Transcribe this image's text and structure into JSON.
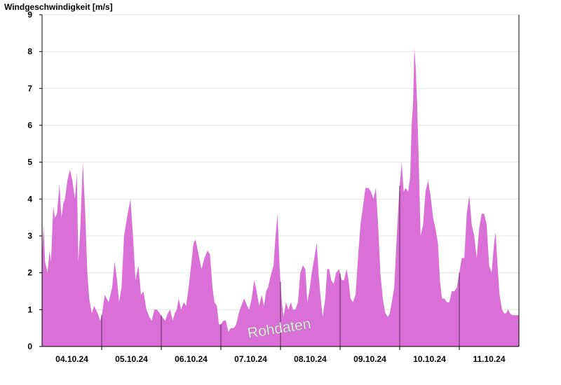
{
  "chart_data": {
    "type": "area",
    "title": "Windgeschwindigkeit [m/s]",
    "watermark": "Rohdaten",
    "ylim": [
      0,
      9
    ],
    "yticks": [
      0,
      1,
      2,
      3,
      4,
      5,
      6,
      7,
      8,
      9
    ],
    "xlim": [
      0,
      192
    ],
    "xticks": [
      {
        "label": "04.10.24",
        "pos": 12
      },
      {
        "label": "05.10.24",
        "pos": 36
      },
      {
        "label": "06.10.24",
        "pos": 60
      },
      {
        "label": "07.10.24",
        "pos": 84
      },
      {
        "label": "08.10.24",
        "pos": 108
      },
      {
        "label": "09.10.24",
        "pos": 132
      },
      {
        "label": "10.10.24",
        "pos": 156
      },
      {
        "label": "11.10.24",
        "pos": 180
      }
    ],
    "day_boundaries": [
      24,
      48,
      72,
      96,
      120,
      144,
      168
    ],
    "grid": true,
    "fill_color": "#da70d6",
    "series": [
      {
        "points": [
          [
            0,
            2.4
          ],
          [
            0.6,
            3.3
          ],
          [
            1.2,
            2.3
          ],
          [
            2.2,
            2.0
          ],
          [
            3,
            2.6
          ],
          [
            3.6,
            2.3
          ],
          [
            4.5,
            3.8
          ],
          [
            5.2,
            3.5
          ],
          [
            6,
            3.6
          ],
          [
            7,
            4.4
          ],
          [
            7.8,
            3.5
          ],
          [
            8.6,
            3.9
          ],
          [
            9.2,
            4.0
          ],
          [
            10.2,
            4.5
          ],
          [
            11.2,
            4.8
          ],
          [
            12.2,
            4.5
          ],
          [
            13.2,
            4.0
          ],
          [
            14,
            4.7
          ],
          [
            14.6,
            2.3
          ],
          [
            15.4,
            3.2
          ],
          [
            16.4,
            5.0
          ],
          [
            17.4,
            3.6
          ],
          [
            18.2,
            2.0
          ],
          [
            19,
            1.3
          ],
          [
            20,
            0.9
          ],
          [
            21,
            1.1
          ],
          [
            22.4,
            0.9
          ],
          [
            23.4,
            0.7
          ],
          [
            24.2,
            0.9
          ],
          [
            25.2,
            1.4
          ],
          [
            26.8,
            1.2
          ],
          [
            28.2,
            1.6
          ],
          [
            29.2,
            2.3
          ],
          [
            30.2,
            1.8
          ],
          [
            31,
            1.2
          ],
          [
            32,
            1.6
          ],
          [
            33,
            3.0
          ],
          [
            34.2,
            3.5
          ],
          [
            35.6,
            4.0
          ],
          [
            36.8,
            2.8
          ],
          [
            37.6,
            1.8
          ],
          [
            38.8,
            2.2
          ],
          [
            39.8,
            1.4
          ],
          [
            40.8,
            1.5
          ],
          [
            42,
            1.0
          ],
          [
            43.2,
            0.8
          ],
          [
            44.2,
            0.7
          ],
          [
            45.2,
            1.0
          ],
          [
            46.2,
            1.0
          ],
          [
            47.4,
            0.9
          ],
          [
            48.4,
            0.8
          ],
          [
            49.6,
            0.7
          ],
          [
            50.6,
            0.9
          ],
          [
            51.6,
            1.0
          ],
          [
            52.6,
            0.7
          ],
          [
            53.4,
            0.9
          ],
          [
            54.2,
            1.0
          ],
          [
            55,
            1.3
          ],
          [
            56,
            1.0
          ],
          [
            57,
            1.2
          ],
          [
            58,
            1.1
          ],
          [
            59,
            1.6
          ],
          [
            60,
            2.2
          ],
          [
            61,
            2.8
          ],
          [
            61.8,
            2.9
          ],
          [
            63,
            2.5
          ],
          [
            64.2,
            2.1
          ],
          [
            65.4,
            2.4
          ],
          [
            66.6,
            2.6
          ],
          [
            67.6,
            2.5
          ],
          [
            68.6,
            1.6
          ],
          [
            69.4,
            1.2
          ],
          [
            70.4,
            1.1
          ],
          [
            71.2,
            0.6
          ],
          [
            72,
            0.6
          ],
          [
            73,
            0.7
          ],
          [
            74,
            0.7
          ],
          [
            75,
            0.4
          ],
          [
            76,
            0.5
          ],
          [
            77.2,
            0.5
          ],
          [
            78.2,
            0.6
          ],
          [
            79.2,
            0.9
          ],
          [
            80.2,
            1.1
          ],
          [
            81.4,
            1.3
          ],
          [
            82.6,
            1.1
          ],
          [
            83.4,
            1.0
          ],
          [
            84.4,
            1.3
          ],
          [
            85.4,
            1.8
          ],
          [
            86.4,
            1.5
          ],
          [
            87.4,
            1.1
          ],
          [
            88.4,
            1.4
          ],
          [
            89.4,
            1.1
          ],
          [
            90.2,
            1.5
          ],
          [
            91,
            1.6
          ],
          [
            92,
            1.9
          ],
          [
            93.2,
            2.2
          ],
          [
            94,
            3.0
          ],
          [
            94.8,
            3.6
          ],
          [
            95.6,
            2.2
          ],
          [
            96.4,
            1.3
          ],
          [
            97.2,
            0.8
          ],
          [
            98.2,
            1.2
          ],
          [
            99.2,
            1.0
          ],
          [
            100.2,
            1.2
          ],
          [
            101,
            1.0
          ],
          [
            102,
            1.0
          ],
          [
            103,
            1.2
          ],
          [
            104,
            2.0
          ],
          [
            105,
            2.2
          ],
          [
            106,
            2.1
          ],
          [
            106.8,
            1.2
          ],
          [
            107.6,
            1.5
          ],
          [
            108.6,
            2.0
          ],
          [
            109.6,
            2.4
          ],
          [
            110.6,
            2.8
          ],
          [
            111.4,
            1.9
          ],
          [
            112.2,
            1.3
          ],
          [
            113,
            0.8
          ],
          [
            114,
            1.3
          ],
          [
            114.8,
            2.1
          ],
          [
            115.6,
            2.1
          ],
          [
            116.4,
            1.8
          ],
          [
            117.4,
            1.7
          ],
          [
            118.4,
            2.0
          ],
          [
            119.6,
            2.1
          ],
          [
            120.6,
            1.8
          ],
          [
            121.6,
            1.8
          ],
          [
            122.6,
            2.1
          ],
          [
            123.4,
            1.8
          ],
          [
            124.2,
            1.3
          ],
          [
            125.2,
            1.2
          ],
          [
            126.2,
            1.4
          ],
          [
            127.2,
            2.4
          ],
          [
            128.2,
            3.3
          ],
          [
            129.2,
            3.8
          ],
          [
            130.2,
            4.3
          ],
          [
            131.4,
            4.3
          ],
          [
            132.4,
            4.2
          ],
          [
            133.4,
            4.0
          ],
          [
            134.4,
            4.3
          ],
          [
            135.4,
            3.2
          ],
          [
            136.2,
            2.0
          ],
          [
            137.2,
            1.3
          ],
          [
            138.2,
            0.9
          ],
          [
            139.2,
            0.8
          ],
          [
            140,
            0.9
          ],
          [
            140.8,
            1.2
          ],
          [
            141.8,
            1.6
          ],
          [
            142.8,
            3.0
          ],
          [
            143.8,
            4.2
          ],
          [
            144.8,
            5.0
          ],
          [
            145.6,
            4.2
          ],
          [
            146.4,
            4.3
          ],
          [
            147.4,
            4.2
          ],
          [
            148.2,
            4.6
          ],
          [
            148.8,
            6.0
          ],
          [
            149.4,
            6.6
          ],
          [
            149.9,
            8.1
          ],
          [
            150.4,
            7.6
          ],
          [
            151,
            6.6
          ],
          [
            151.6,
            5.2
          ],
          [
            152.4,
            3.0
          ],
          [
            153.4,
            3.3
          ],
          [
            154.4,
            4.2
          ],
          [
            155.4,
            4.5
          ],
          [
            156.4,
            4.1
          ],
          [
            157.4,
            3.5
          ],
          [
            158.4,
            3.2
          ],
          [
            159.4,
            2.8
          ],
          [
            160.2,
            1.8
          ],
          [
            161,
            1.3
          ],
          [
            162,
            1.3
          ],
          [
            163,
            1.2
          ],
          [
            164,
            1.2
          ],
          [
            165,
            1.5
          ],
          [
            166,
            1.5
          ],
          [
            167,
            1.6
          ],
          [
            168,
            2.0
          ],
          [
            169,
            2.4
          ],
          [
            170,
            2.4
          ],
          [
            171,
            3.6
          ],
          [
            172,
            4.1
          ],
          [
            173,
            3.3
          ],
          [
            174,
            3.0
          ],
          [
            175,
            2.4
          ],
          [
            176,
            3.2
          ],
          [
            177,
            3.6
          ],
          [
            178,
            3.6
          ],
          [
            179,
            3.3
          ],
          [
            180,
            2.2
          ],
          [
            181,
            2.0
          ],
          [
            182,
            2.8
          ],
          [
            182.6,
            3.1
          ],
          [
            183.4,
            2.2
          ],
          [
            184.2,
            1.4
          ],
          [
            185.2,
            1.0
          ],
          [
            186,
            0.9
          ],
          [
            186.8,
            0.9
          ],
          [
            187.6,
            1.0
          ],
          [
            188.4,
            0.9
          ],
          [
            189.2,
            0.85
          ],
          [
            190.4,
            0.85
          ],
          [
            192,
            0.85
          ]
        ]
      }
    ]
  }
}
